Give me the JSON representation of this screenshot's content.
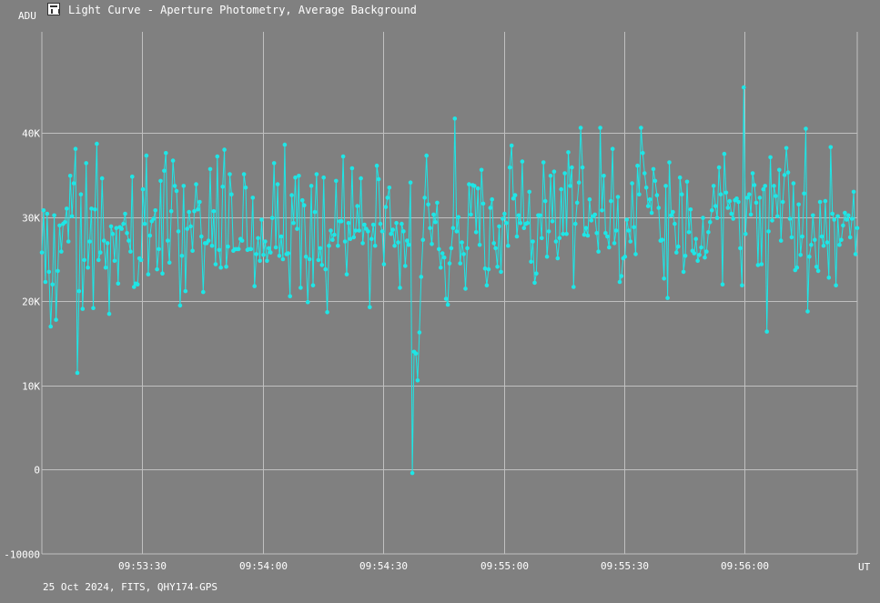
{
  "window": {
    "icon": "chart-window-icon",
    "title": "Light Curve - Aperture Photometry, Average Background"
  },
  "footer": "25 Oct 2024, FITS, QHY174-GPS",
  "colors": {
    "background": "#808080",
    "grid": "#c0c0c0",
    "series": "#1ee6e6",
    "text": "#ffffff"
  },
  "chart_data": {
    "type": "line",
    "title": "Light Curve - Aperture Photometry, Average Background",
    "xlabel": "UT",
    "ylabel": "ADU",
    "xlim": [
      "09:53:05",
      "09:56:28"
    ],
    "ylim": [
      -10000,
      52000
    ],
    "grid": true,
    "x_ticks": [
      "09:53:30",
      "09:54:00",
      "09:54:30",
      "09:55:00",
      "09:55:30",
      "09:56:00"
    ],
    "y_ticks": [
      {
        "value": -10000,
        "label": "-10000"
      },
      {
        "value": 0,
        "label": "0"
      },
      {
        "value": 10000,
        "label": "10K"
      },
      {
        "value": 20000,
        "label": "20K"
      },
      {
        "value": 30000,
        "label": "30K"
      },
      {
        "value": 40000,
        "label": "40K"
      }
    ],
    "x_start": "09:53:05",
    "x_end": "09:56:28",
    "series": [
      {
        "values": [
          25800,
          30800,
          22300,
          30400,
          23500,
          17000,
          22000,
          30200,
          17800,
          23600,
          29000,
          25900,
          29200,
          29400,
          31000,
          27100,
          34900,
          30100,
          34000,
          38100,
          11500,
          21200,
          32700,
          19100,
          24900,
          36400,
          24000,
          27100,
          31000,
          19200,
          30900,
          38700,
          24900,
          25800,
          34600,
          27200,
          24000,
          26900,
          18500,
          28900,
          28000,
          24800,
          28700,
          22100,
          28800,
          28600,
          29200,
          30400,
          28100,
          27200,
          25900,
          34800,
          21700,
          22100,
          22000,
          25100,
          24900,
          33300,
          29200,
          37300,
          23200,
          27800,
          29500,
          29800,
          30800,
          23800,
          26200,
          34300,
          23300,
          35500,
          37600,
          27200,
          24600,
          30700,
          36700,
          33700,
          33100,
          28300,
          19500,
          25400,
          33700,
          21200,
          28600,
          30600,
          28900,
          26000,
          30700,
          33900,
          30900,
          31800,
          27700,
          21100,
          26900,
          26900,
          27200,
          35700,
          26600,
          30700,
          24400,
          37200,
          26100,
          24000,
          33600,
          38000,
          24100,
          26500,
          35100,
          32700,
          26000,
          26200,
          26200,
          26200,
          27400,
          27200,
          35100,
          33500,
          26100,
          26200,
          26200,
          32300,
          21800,
          25600,
          27500,
          24800,
          29700,
          25500,
          27100,
          24800,
          26300,
          25800,
          29900,
          36400,
          26400,
          33900,
          25400,
          27700,
          25000,
          38600,
          25600,
          25700,
          20600,
          32600,
          29300,
          34700,
          28600,
          34900,
          21600,
          32000,
          31400,
          25300,
          19900,
          25000,
          33700,
          21900,
          30600,
          35100,
          24900,
          26300,
          24300,
          34700,
          23800,
          18700,
          26600,
          28400,
          27300,
          27900,
          34300,
          26600,
          29500,
          29500,
          37200,
          27100,
          23200,
          29300,
          27400,
          35800,
          27600,
          28400,
          31300,
          28400,
          34600,
          26900,
          29100,
          28600,
          28300,
          19300,
          27400,
          29100,
          26600,
          36100,
          34500,
          29200,
          28300,
          24400,
          31200,
          32300,
          33500,
          28000,
          28500,
          26600,
          29300,
          27000,
          21600,
          29200,
          28300,
          24200,
          27200,
          26700,
          34100,
          -400,
          14000,
          13800,
          10600,
          16300,
          22900,
          27300,
          32300,
          37300,
          31500,
          28700,
          26800,
          30300,
          29400,
          31700,
          26200,
          24000,
          25700,
          25200,
          20300,
          19600,
          24500,
          26300,
          28700,
          41700,
          28300,
          30000,
          24500,
          27000,
          25600,
          21500,
          26300,
          33900,
          30300,
          33800,
          33700,
          28200,
          33400,
          26700,
          35600,
          31600,
          23900,
          21900,
          23800,
          31100,
          32100,
          26900,
          26300,
          24100,
          28900,
          23500,
          29800,
          30400,
          29300,
          26600,
          35900,
          38500,
          32200,
          32600,
          27700,
          30200,
          29300,
          36600,
          28700,
          29200,
          29300,
          33000,
          24700,
          27100,
          22200,
          23300,
          30200,
          30200,
          27500,
          36500,
          31900,
          25300,
          28300,
          34900,
          29500,
          35400,
          27100,
          25100,
          27500,
          33300,
          28000,
          35200,
          28000,
          37700,
          33700,
          35900,
          21700,
          29200,
          31700,
          34100,
          40600,
          35900,
          27900,
          28700,
          27800,
          32100,
          29600,
          30100,
          30300,
          28100,
          25900,
          40600,
          30800,
          34900,
          28100,
          27700,
          26400,
          31900,
          38100,
          26900,
          28400,
          32400,
          22300,
          23000,
          25100,
          25300,
          29700,
          28400,
          27100,
          34000,
          28800,
          25600,
          36100,
          32700,
          40600,
          37600,
          35200,
          33500,
          31300,
          32100,
          30500,
          35700,
          34300,
          32600,
          31100,
          27200,
          27300,
          22700,
          33700,
          20400,
          36500,
          30200,
          30600,
          29200,
          25800,
          26500,
          34700,
          32700,
          23500,
          25400,
          34200,
          28200,
          30900,
          26000,
          25700,
          27400,
          24800,
          25500,
          26400,
          29900,
          25200,
          25900,
          28200,
          29400,
          30800,
          33700,
          31300,
          29900,
          35900,
          32700,
          22000,
          37500,
          32900,
          31100,
          31900,
          30400,
          29800,
          32000,
          32200,
          31800,
          26300,
          21900,
          45400,
          28000,
          32300,
          32700,
          30300,
          35200,
          33800,
          31700,
          24300,
          32300,
          24400,
          33300,
          33700,
          16400,
          28300,
          37100,
          29600,
          33700,
          32500,
          30100,
          35600,
          27200,
          31800,
          35000,
          38200,
          35300,
          29800,
          27600,
          34000,
          23700,
          24000,
          31500,
          25500,
          27700,
          32800,
          40500,
          18800,
          25300,
          26700,
          30200,
          27300,
          24100,
          23600,
          31800,
          27700,
          26600,
          31900,
          27000,
          22800,
          38300,
          30400,
          29700,
          21900,
          30100,
          26700,
          27300,
          29000,
          30500,
          29700,
          30200,
          27600,
          29800,
          33000,
          25600,
          28700
        ],
        "color": "#1ee6e6"
      }
    ]
  }
}
